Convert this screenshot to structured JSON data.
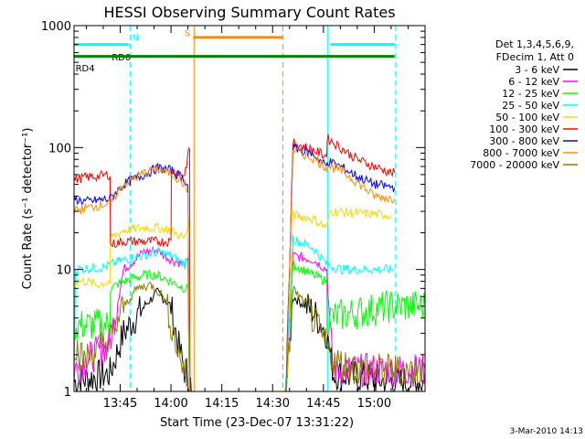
{
  "chart_data": {
    "type": "line",
    "title": "HESSI Observing Summary Count Rates",
    "xlabel": "Start Time (23-Dec-07 13:31:22)",
    "ylabel": "Count Rate (s⁻¹ detector⁻¹)",
    "xlim_minutes": [
      811.37,
      915.0
    ],
    "ylim": [
      1,
      1000
    ],
    "yscale": "log",
    "x_ticks": [
      {
        "minute": 825,
        "label": "13:45"
      },
      {
        "minute": 840,
        "label": "14:00"
      },
      {
        "minute": 855,
        "label": "14:15"
      },
      {
        "minute": 870,
        "label": "14:30"
      },
      {
        "minute": 885,
        "label": "14:45"
      },
      {
        "minute": 900,
        "label": "15:00"
      }
    ],
    "y_ticks": [
      {
        "value": 1,
        "label": "1"
      },
      {
        "value": 10,
        "label": "10"
      },
      {
        "value": 100,
        "label": "100"
      },
      {
        "value": 1000,
        "label": "1000"
      }
    ],
    "legend_header": [
      "Det 1,3,4,5,6,9,",
      "FDecim 1, Att 0"
    ],
    "footer_date": "3-Mar-2010 14:13",
    "series": [
      {
        "name": "3 - 6 keV",
        "color": "#000000",
        "pts": [
          [
            811.4,
            1.2
          ],
          [
            822,
            1.4
          ],
          [
            826,
            3
          ],
          [
            832,
            5
          ],
          [
            836,
            6.5
          ],
          [
            840,
            5
          ],
          [
            842,
            2.5
          ],
          [
            844,
            1.5
          ],
          [
            845.5,
            1.3
          ],
          [
            846,
            1
          ],
          [
            874,
            1
          ],
          [
            876,
            6
          ],
          [
            882,
            4.5
          ],
          [
            886,
            3
          ],
          [
            887,
            2
          ],
          [
            888,
            1.4
          ],
          [
            905,
            1.2
          ],
          [
            915,
            1.2
          ]
        ]
      },
      {
        "name": "6 - 12 keV",
        "color": "#ff00ff",
        "pts": [
          [
            811.4,
            1.5
          ],
          [
            822,
            2.5
          ],
          [
            826,
            10
          ],
          [
            832,
            14
          ],
          [
            836,
            14.5
          ],
          [
            840,
            12
          ],
          [
            844,
            11
          ],
          [
            845,
            11.5
          ],
          [
            845.5,
            1
          ],
          [
            874,
            1
          ],
          [
            876,
            13
          ],
          [
            882,
            12
          ],
          [
            886,
            10
          ],
          [
            887,
            3
          ],
          [
            888,
            1.5
          ],
          [
            905,
            1.5
          ],
          [
            915,
            1.5
          ]
        ]
      },
      {
        "name": "12 - 25 keV",
        "color": "#00ff00",
        "pts": [
          [
            811.4,
            3.5
          ],
          [
            822,
            3.5
          ],
          [
            822.1,
            7
          ],
          [
            826,
            8
          ],
          [
            832,
            9
          ],
          [
            836,
            9
          ],
          [
            840,
            8
          ],
          [
            844,
            7
          ],
          [
            845,
            7
          ],
          [
            845.5,
            1
          ],
          [
            874,
            1
          ],
          [
            876,
            11
          ],
          [
            882,
            9
          ],
          [
            886,
            8
          ],
          [
            886.1,
            4
          ],
          [
            905,
            5
          ],
          [
            915,
            5
          ]
        ]
      },
      {
        "name": "25 - 50 keV",
        "color": "#00ffff",
        "pts": [
          [
            811.4,
            1.5
          ],
          [
            811.8,
            10
          ],
          [
            820,
            10.5
          ],
          [
            826,
            12
          ],
          [
            832,
            13
          ],
          [
            836,
            14
          ],
          [
            840,
            13
          ],
          [
            844,
            11
          ],
          [
            845,
            12
          ],
          [
            845.5,
            1
          ],
          [
            874,
            1
          ],
          [
            876,
            18
          ],
          [
            882,
            15
          ],
          [
            886,
            11
          ],
          [
            890,
            10
          ],
          [
            900,
            10
          ],
          [
            906,
            10
          ]
        ]
      },
      {
        "name": "50 - 100 keV",
        "color": "#ffd700",
        "pts": [
          [
            811.4,
            8
          ],
          [
            815,
            8
          ],
          [
            818,
            7.5
          ],
          [
            822,
            8
          ],
          [
            822.1,
            18
          ],
          [
            826,
            21
          ],
          [
            832,
            22
          ],
          [
            836,
            22
          ],
          [
            840,
            21
          ],
          [
            844,
            18
          ],
          [
            845.5,
            25
          ],
          [
            845.6,
            1
          ],
          [
            874,
            1
          ],
          [
            876,
            28
          ],
          [
            882,
            26
          ],
          [
            886,
            22
          ],
          [
            887,
            30
          ],
          [
            895,
            29
          ],
          [
            905,
            28
          ]
        ]
      },
      {
        "name": "100 - 300 keV",
        "color": "#ff0000",
        "pts": [
          [
            811.4,
            55
          ],
          [
            815,
            57
          ],
          [
            818,
            58
          ],
          [
            822,
            60
          ],
          [
            822.1,
            16
          ],
          [
            826,
            17
          ],
          [
            832,
            17
          ],
          [
            840,
            17
          ],
          [
            840.1,
            65
          ],
          [
            844,
            60
          ],
          [
            845.5,
            100
          ],
          [
            845.6,
            1
          ],
          [
            874,
            1
          ],
          [
            876,
            110
          ],
          [
            882,
            95
          ],
          [
            886,
            85
          ],
          [
            886.1,
            120
          ],
          [
            890,
            100
          ],
          [
            895,
            80
          ],
          [
            900,
            70
          ],
          [
            905,
            62
          ],
          [
            906,
            62
          ]
        ]
      },
      {
        "name": "300 - 800 keV",
        "color": "#0000ff",
        "pts": [
          [
            811.4,
            38
          ],
          [
            815,
            36
          ],
          [
            822,
            38
          ],
          [
            826,
            50
          ],
          [
            832,
            60
          ],
          [
            836,
            68
          ],
          [
            840,
            65
          ],
          [
            844,
            55
          ],
          [
            845,
            48
          ],
          [
            845.5,
            1
          ],
          [
            874,
            1
          ],
          [
            876,
            100
          ],
          [
            882,
            88
          ],
          [
            886,
            70
          ],
          [
            886.1,
            78
          ],
          [
            890,
            70
          ],
          [
            895,
            58
          ],
          [
            900,
            50
          ],
          [
            906,
            47
          ]
        ]
      },
      {
        "name": "800 - 7000 keV",
        "color": "#ff8c00",
        "pts": [
          [
            811.4,
            30
          ],
          [
            815,
            32
          ],
          [
            822,
            35
          ],
          [
            826,
            50
          ],
          [
            832,
            62
          ],
          [
            836,
            66
          ],
          [
            840,
            62
          ],
          [
            844,
            50
          ],
          [
            845,
            42
          ],
          [
            845.5,
            1
          ],
          [
            874,
            1
          ],
          [
            876,
            95
          ],
          [
            882,
            82
          ],
          [
            886,
            68
          ],
          [
            886.1,
            72
          ],
          [
            890,
            65
          ],
          [
            895,
            52
          ],
          [
            900,
            40
          ],
          [
            906,
            38
          ]
        ]
      },
      {
        "name": "7000 - 20000 keV",
        "color": "#8b7a00",
        "pts": [
          [
            811.4,
            2.5
          ],
          [
            814,
            1.8
          ],
          [
            818,
            2.2
          ],
          [
            822,
            2.6
          ],
          [
            826,
            5
          ],
          [
            830,
            7
          ],
          [
            834,
            7.5
          ],
          [
            838,
            6
          ],
          [
            842,
            2.2
          ],
          [
            844,
            1.5
          ],
          [
            845.5,
            1
          ],
          [
            874,
            1
          ],
          [
            876,
            7
          ],
          [
            880,
            5
          ],
          [
            884,
            3
          ],
          [
            888,
            1.8
          ],
          [
            895,
            1.5
          ],
          [
            905,
            1.5
          ],
          [
            915,
            1.5
          ]
        ]
      }
    ],
    "state_bars": [
      {
        "label": "RD0",
        "color": "#00ffff",
        "y": 700,
        "segments": [
          [
            811.4,
            827.5
          ],
          [
            887,
            906
          ]
        ],
        "label_minute": 822.5,
        "label_y": 520
      },
      {
        "label": "N",
        "color": "#00ffff",
        "y": 0,
        "segments": [],
        "label_minute": 828.5,
        "label_y": 750
      },
      {
        "label": "RD4",
        "color": "#008000",
        "y": 560,
        "segments": [
          [
            811.4,
            840
          ],
          [
            840,
            873
          ],
          [
            873,
            884.5
          ],
          [
            884.5,
            906
          ]
        ],
        "label_minute": 811.8,
        "label_y": 420
      },
      {
        "label": "S",
        "color": "#ff8c00",
        "y": 800,
        "segments": [
          [
            846.5,
            873
          ]
        ],
        "label_minute": 844,
        "label_y": 820
      }
    ],
    "vlines": [
      {
        "minute": 828,
        "color": "#00ffff",
        "style": "dashed"
      },
      {
        "minute": 846.8,
        "color": "#ff8c00",
        "style": "solid"
      },
      {
        "minute": 873,
        "color": "#ff8c00",
        "style": "dashed"
      },
      {
        "minute": 886.3,
        "color": "#00ffff",
        "style": "solid"
      },
      {
        "minute": 906.3,
        "color": "#00ffff",
        "style": "dashed"
      }
    ]
  }
}
